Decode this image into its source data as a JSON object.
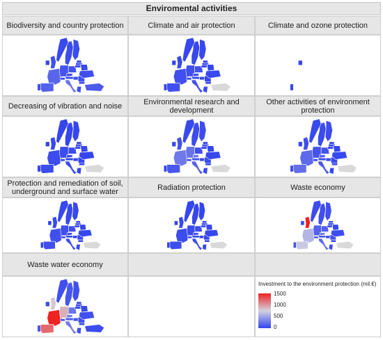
{
  "title": "Enviromental activities",
  "chart_data": {
    "type": "map-grid",
    "maps": [
      {
        "id": "m0",
        "label": "Biodiversity and country protection",
        "countries": {
          "FR": 180,
          "ES": 150,
          "PT": 60,
          "IT": 250,
          "DE": 80,
          "PL": 80,
          "SE": 40,
          "NO": 30,
          "FI": 40,
          "GB": 60,
          "IE": 20,
          "EE": 30,
          "LV": 30,
          "LT": 30,
          "BY": 30,
          "CZ": 60,
          "AT": 40,
          "CH": 20,
          "HU": 40,
          "RO": 60,
          "BG": 20,
          "GR": 60,
          "TR": 120,
          "UA": 60
        }
      },
      {
        "id": "m1",
        "label": "Climate and air protection",
        "countries": {
          "FR": 60,
          "ES": 60,
          "PT": 20,
          "IT": 60,
          "DE": 60,
          "PL": 60,
          "SE": 20,
          "NO": 20,
          "FI": 20,
          "GB": 30,
          "IE": 10,
          "EE": 10,
          "LV": 10,
          "LT": 10,
          "BY": 10,
          "CZ": 60,
          "AT": 20,
          "CH": 10,
          "HU": 20,
          "RO": 20,
          "BG": 10,
          "GR": 20,
          "TR": null,
          "UA": 20
        }
      },
      {
        "id": "m2",
        "label": "Climate and ozone protection",
        "countries": {
          "PT": 10,
          "IE": 10
        }
      },
      {
        "id": "m3",
        "label": "Decreasing of vibration and noise",
        "countries": {
          "FR": 40,
          "ES": 40,
          "PT": 10,
          "IT": 40,
          "DE": 40,
          "PL": 40,
          "SE": 10,
          "NO": 10,
          "FI": 10,
          "GB": 20,
          "IE": 10,
          "EE": 10,
          "LV": 10,
          "LT": 10,
          "BY": 10,
          "CZ": 40,
          "AT": 10,
          "CH": 10,
          "HU": 10,
          "RO": 10,
          "BG": 10,
          "GR": 10,
          "TR": null,
          "UA": 10
        }
      },
      {
        "id": "m4",
        "label": "Environmental research and development",
        "countries": {
          "FR": 280,
          "ES": 100,
          "PT": 40,
          "IT": 150,
          "DE": 250,
          "PL": 60,
          "SE": 40,
          "NO": 30,
          "FI": 40,
          "GB": 70,
          "IE": 20,
          "EE": 10,
          "LV": 10,
          "LT": 10,
          "BY": 10,
          "CZ": 280,
          "AT": 80,
          "CH": 40,
          "HU": 30,
          "RO": 30,
          "BG": 10,
          "GR": 20,
          "TR": null,
          "UA": 20
        }
      },
      {
        "id": "m5",
        "label": "Other activities of environment protection",
        "countries": {
          "FR": 200,
          "ES": 220,
          "PT": 60,
          "IT": 100,
          "DE": 80,
          "PL": 80,
          "SE": 40,
          "NO": 30,
          "FI": 40,
          "GB": 60,
          "IE": 20,
          "EE": 10,
          "LV": 10,
          "LT": 10,
          "BY": 10,
          "CZ": 150,
          "AT": 40,
          "CH": 20,
          "HU": 30,
          "RO": 30,
          "BG": 10,
          "GR": 20,
          "TR": null,
          "UA": 20
        }
      },
      {
        "id": "m6",
        "label": "Protection and remediation of soil, underground and surface water",
        "countries": {
          "FR": 60,
          "ES": 60,
          "PT": 20,
          "IT": 60,
          "DE": 60,
          "PL": 60,
          "SE": 20,
          "NO": 20,
          "FI": 20,
          "GB": 30,
          "IE": 10,
          "EE": 10,
          "LV": 10,
          "LT": 10,
          "BY": 10,
          "CZ": 40,
          "AT": 20,
          "CH": 10,
          "HU": 20,
          "RO": 20,
          "BG": 10,
          "GR": 20,
          "TR": null,
          "UA": 20
        }
      },
      {
        "id": "m7",
        "label": "Radiation protection",
        "countries": {
          "FR": 40,
          "ES": 40,
          "PT": 10,
          "IT": 40,
          "DE": 40,
          "PL": 40,
          "SE": 10,
          "NO": 10,
          "FI": 10,
          "GB": 20,
          "IE": 10,
          "EE": 10,
          "LV": 10,
          "LT": 10,
          "BY": 10,
          "CZ": 60,
          "AT": 10,
          "CH": 10,
          "HU": 10,
          "RO": 10,
          "BG": 10,
          "GR": 10,
          "TR": null,
          "UA": 10
        }
      },
      {
        "id": "m8",
        "label": "Waste economy",
        "countries": {
          "FR": 600,
          "ES": 700,
          "PT": 80,
          "IT": 200,
          "DE": 150,
          "PL": 150,
          "SE": 60,
          "NO": 40,
          "FI": 60,
          "GB": 1500,
          "IE": 40,
          "EE": 20,
          "LV": 20,
          "LT": 20,
          "BY": 20,
          "CZ": 250,
          "AT": 80,
          "CH": 60,
          "HU": 60,
          "RO": 60,
          "BG": 30,
          "GR": 60,
          "TR": null,
          "UA": 40
        }
      },
      {
        "id": "m9",
        "label": "Waste water economy",
        "countries": {
          "FR": 1500,
          "ES": 1200,
          "PT": 100,
          "IT": 300,
          "DE": 900,
          "PL": 250,
          "SE": 100,
          "NO": 60,
          "FI": 60,
          "GB": 800,
          "IE": 40,
          "EE": 20,
          "LV": 20,
          "LT": 20,
          "BY": 20,
          "CZ": 300,
          "AT": 120,
          "CH": 80,
          "HU": 80,
          "RO": 80,
          "BG": 40,
          "GR": 60,
          "TR": 40,
          "UA": 60
        }
      }
    ],
    "legend": {
      "title": "Investment to the environment protection (mil.€)",
      "ticks": [
        "1500",
        "1000",
        "500",
        "0"
      ],
      "min": 0,
      "max": 1500,
      "colors": {
        "low": "#3344ee",
        "mid": "#d3d3e0",
        "high": "#ee2222",
        "missing": "#d9d9d9"
      }
    }
  }
}
